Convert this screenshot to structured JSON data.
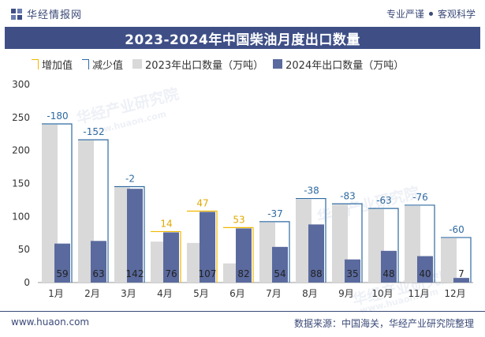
{
  "header": {
    "brand": "华经情报网",
    "tagline_left": "专业严谨",
    "tagline_right": "客观科学"
  },
  "footer": {
    "site": "www.huaon.com",
    "source": "数据来源：中国海关，华经产业研究院整理"
  },
  "watermark": {
    "text": "华经产业研究院",
    "url": "www.huaon.com"
  },
  "colors": {
    "brand": "#3f4f86",
    "bar2023": "#d9d9d9",
    "bar2024": "#5a6a9e",
    "increase": "#f0b800",
    "decrease": "#2f6aa0"
  },
  "chart_data": {
    "type": "bar",
    "title": "2023-2024年中国柴油月度出口数量",
    "categories": [
      "1月",
      "2月",
      "3月",
      "4月",
      "5月",
      "6月",
      "7月",
      "8月",
      "9月",
      "10月",
      "11月",
      "12月"
    ],
    "series": [
      {
        "name": "2023年出口数量（万吨）",
        "values": [
          239,
          215,
          144,
          62,
          60,
          29,
          91,
          126,
          118,
          111,
          116,
          67
        ]
      },
      {
        "name": "2024年出口数量（万吨）",
        "values": [
          59,
          63,
          142,
          76,
          107,
          82,
          54,
          88,
          35,
          48,
          40,
          7
        ]
      }
    ],
    "changes": [
      -180,
      -152,
      -2,
      14,
      47,
      53,
      -37,
      -38,
      -83,
      -63,
      -76,
      -60
    ],
    "change_labels": [
      "-180",
      "-152",
      "-2",
      "14",
      "47",
      "53",
      "-37",
      "-38",
      "-83",
      "-63",
      "-76",
      "-60"
    ],
    "legend": [
      "增加值",
      "减少值",
      "2023年出口数量（万吨）",
      "2024年出口数量（万吨）"
    ],
    "ylim": [
      0,
      300
    ],
    "yticks": [
      0,
      50,
      100,
      150,
      200,
      250,
      300
    ],
    "grid": false,
    "legend_position": "top"
  }
}
